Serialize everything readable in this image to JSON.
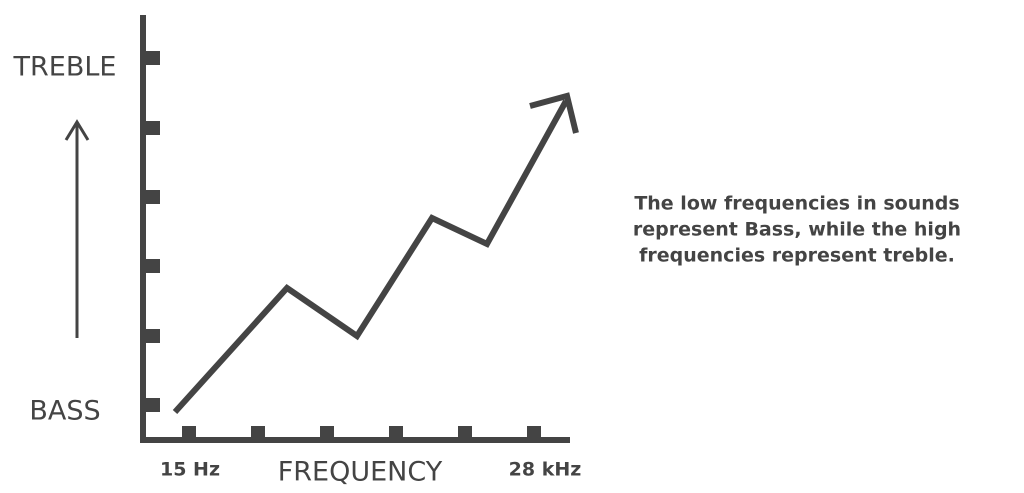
{
  "axis": {
    "y_top": "TREBLE",
    "y_bottom": "BASS",
    "x_start": "15 Hz",
    "x_label": "FREQUENCY",
    "x_end": "28 kHz"
  },
  "caption": {
    "lines": [
      "The low frequencies in sounds",
      "represent Bass, while the high",
      "frequencies represent treble."
    ]
  }
}
